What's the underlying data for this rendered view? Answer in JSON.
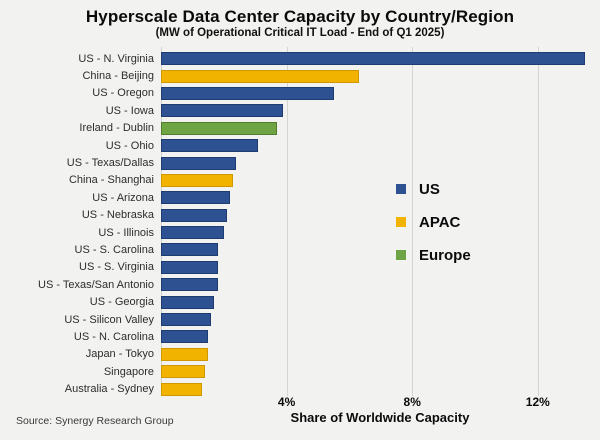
{
  "header": {
    "title": "Hyperscale Data Center Capacity by Country/Region",
    "subtitle": "(MW of Operational Critical IT Load - End of Q1 2025)"
  },
  "footer": {
    "source": "Source: Synergy Research Group"
  },
  "chart_data": {
    "type": "bar",
    "orientation": "horizontal",
    "title": "Hyperscale Data Center Capacity by Country/Region",
    "subtitle": "(MW of Operational Critical IT Load - End of Q1 2025)",
    "xlabel": "Share of Worldwide Capacity",
    "ylabel": "",
    "xlim": [
      0,
      13.9
    ],
    "grid": "vertical-only",
    "legend_position": "center-right",
    "categories": [
      "US - N. Virginia",
      "China - Beijing",
      "US - Oregon",
      "US - Iowa",
      "Ireland - Dublin",
      "US - Ohio",
      "US - Texas/Dallas",
      "China - Shanghai",
      "US - Arizona",
      "US - Nebraska",
      "US - Illinois",
      "US - S. Carolina",
      "US - S. Virginia",
      "US - Texas/San Antonio",
      "US - Georgia",
      "US - Silicon Valley",
      "US - N. Carolina",
      "Japan - Tokyo",
      "Singapore",
      "Australia - Sydney"
    ],
    "values": [
      13.5,
      6.3,
      5.5,
      3.9,
      3.7,
      3.1,
      2.4,
      2.3,
      2.2,
      2.1,
      2.0,
      1.8,
      1.8,
      1.8,
      1.7,
      1.6,
      1.5,
      1.5,
      1.4,
      1.3
    ],
    "groups": [
      "US",
      "APAC",
      "US",
      "US",
      "Europe",
      "US",
      "US",
      "APAC",
      "US",
      "US",
      "US",
      "US",
      "US",
      "US",
      "US",
      "US",
      "US",
      "APAC",
      "APAC",
      "APAC"
    ],
    "xticks": [
      {
        "value": 4,
        "label": "4%"
      },
      {
        "value": 8,
        "label": "8%"
      },
      {
        "value": 12,
        "label": "12%"
      }
    ],
    "legend": [
      {
        "label": "US",
        "color": "#2e5191",
        "border": "#1f3c72"
      },
      {
        "label": "APAC",
        "color": "#f1b300",
        "border": "#cf9700"
      },
      {
        "label": "Europe",
        "color": "#6ea444",
        "border": "#527c2e"
      }
    ],
    "colors": {
      "US": {
        "fill": "#2e5191",
        "border": "#1f3c72"
      },
      "APAC": {
        "fill": "#f1b300",
        "border": "#cf9700"
      },
      "Europe": {
        "fill": "#6ea444",
        "border": "#527c2e"
      }
    },
    "background_color": "#f2f2f1",
    "gridline_color": "#d4d4d2"
  }
}
